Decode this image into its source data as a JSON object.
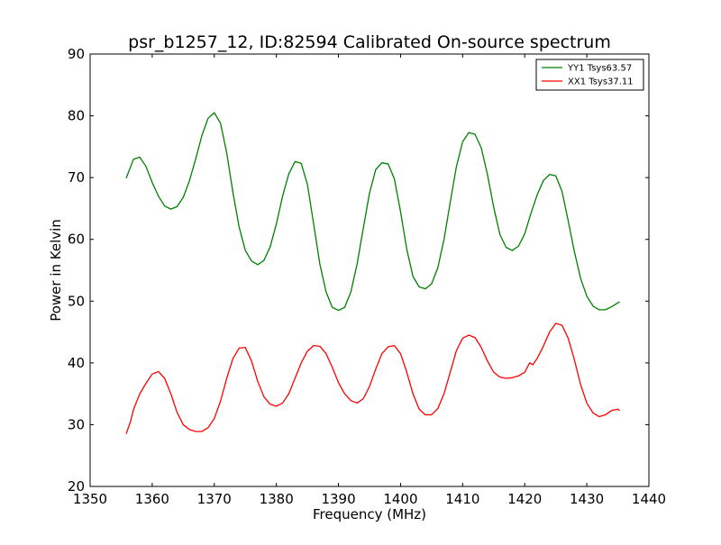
{
  "chart_data": {
    "type": "line",
    "title": "psr_b1257_12, ID:82594 Calibrated On-source spectrum",
    "xlabel": "Frequency (MHz)",
    "ylabel": "Power in Kelvin",
    "xlim": [
      1350,
      1440
    ],
    "ylim": [
      20,
      90
    ],
    "x_ticks": [
      "1350",
      "1360",
      "1370",
      "1380",
      "1390",
      "1400",
      "1410",
      "1420",
      "1430",
      "1440"
    ],
    "y_ticks": [
      "20",
      "30",
      "40",
      "50",
      "60",
      "70",
      "80",
      "90"
    ],
    "grid": false,
    "legend_position": "top-right",
    "series": [
      {
        "name": "YY1 Tsys63.57",
        "color": "#008000",
        "points": [
          [
            1355.8,
            69.9
          ],
          [
            1357.0,
            73.0
          ],
          [
            1358.0,
            73.3
          ],
          [
            1359.0,
            71.8
          ],
          [
            1360.0,
            69.2
          ],
          [
            1361.0,
            67.0
          ],
          [
            1362.0,
            65.4
          ],
          [
            1363.0,
            64.9
          ],
          [
            1364.0,
            65.3
          ],
          [
            1365.0,
            66.8
          ],
          [
            1366.0,
            69.5
          ],
          [
            1367.0,
            73.0
          ],
          [
            1368.0,
            76.8
          ],
          [
            1369.0,
            79.6
          ],
          [
            1370.0,
            80.5
          ],
          [
            1371.0,
            78.8
          ],
          [
            1372.0,
            74.0
          ],
          [
            1373.0,
            67.6
          ],
          [
            1374.0,
            62.0
          ],
          [
            1375.0,
            58.2
          ],
          [
            1376.0,
            56.5
          ],
          [
            1377.0,
            55.9
          ],
          [
            1378.0,
            56.6
          ],
          [
            1379.0,
            58.8
          ],
          [
            1380.0,
            62.5
          ],
          [
            1381.0,
            67.0
          ],
          [
            1382.0,
            70.6
          ],
          [
            1383.0,
            72.6
          ],
          [
            1384.0,
            72.3
          ],
          [
            1385.0,
            68.9
          ],
          [
            1386.0,
            62.5
          ],
          [
            1387.0,
            56.0
          ],
          [
            1388.0,
            51.5
          ],
          [
            1389.0,
            49.0
          ],
          [
            1390.0,
            48.5
          ],
          [
            1391.0,
            49.0
          ],
          [
            1392.0,
            51.5
          ],
          [
            1393.0,
            56.0
          ],
          [
            1394.0,
            61.8
          ],
          [
            1395.0,
            67.5
          ],
          [
            1396.0,
            71.3
          ],
          [
            1397.0,
            72.4
          ],
          [
            1398.0,
            72.2
          ],
          [
            1399.0,
            69.8
          ],
          [
            1400.0,
            64.5
          ],
          [
            1401.0,
            58.4
          ],
          [
            1402.0,
            54.0
          ],
          [
            1403.0,
            52.3
          ],
          [
            1404.0,
            52.0
          ],
          [
            1405.0,
            52.8
          ],
          [
            1406.0,
            55.4
          ],
          [
            1407.0,
            60.0
          ],
          [
            1408.0,
            66.0
          ],
          [
            1409.0,
            71.8
          ],
          [
            1410.0,
            75.8
          ],
          [
            1411.0,
            77.3
          ],
          [
            1412.0,
            77.0
          ],
          [
            1413.0,
            74.8
          ],
          [
            1414.0,
            70.5
          ],
          [
            1415.0,
            65.2
          ],
          [
            1416.0,
            60.8
          ],
          [
            1417.0,
            58.7
          ],
          [
            1418.0,
            58.2
          ],
          [
            1419.0,
            58.9
          ],
          [
            1420.0,
            60.9
          ],
          [
            1421.0,
            64.2
          ],
          [
            1422.0,
            67.2
          ],
          [
            1423.0,
            69.5
          ],
          [
            1424.0,
            70.5
          ],
          [
            1425.0,
            70.3
          ],
          [
            1426.0,
            67.8
          ],
          [
            1427.0,
            63.0
          ],
          [
            1428.0,
            58.0
          ],
          [
            1429.0,
            53.7
          ],
          [
            1430.0,
            50.8
          ],
          [
            1431.0,
            49.2
          ],
          [
            1432.0,
            48.6
          ],
          [
            1433.0,
            48.6
          ],
          [
            1434.0,
            49.1
          ],
          [
            1435.3,
            49.9
          ]
        ]
      },
      {
        "name": "XX1 Tsys37.11",
        "color": "#ff0000",
        "points": [
          [
            1355.8,
            28.5
          ],
          [
            1356.5,
            30.5
          ],
          [
            1357.0,
            32.5
          ],
          [
            1358.0,
            35.0
          ],
          [
            1359.0,
            36.7
          ],
          [
            1360.0,
            38.2
          ],
          [
            1361.0,
            38.6
          ],
          [
            1362.0,
            37.5
          ],
          [
            1363.0,
            35.0
          ],
          [
            1364.0,
            32.0
          ],
          [
            1365.0,
            30.0
          ],
          [
            1366.0,
            29.2
          ],
          [
            1367.0,
            28.9
          ],
          [
            1368.0,
            28.9
          ],
          [
            1369.0,
            29.5
          ],
          [
            1370.0,
            31.0
          ],
          [
            1371.0,
            33.8
          ],
          [
            1372.0,
            37.5
          ],
          [
            1373.0,
            40.7
          ],
          [
            1374.0,
            42.4
          ],
          [
            1375.0,
            42.5
          ],
          [
            1376.0,
            40.3
          ],
          [
            1377.0,
            37.0
          ],
          [
            1378.0,
            34.5
          ],
          [
            1379.0,
            33.3
          ],
          [
            1380.0,
            33.0
          ],
          [
            1381.0,
            33.5
          ],
          [
            1382.0,
            35.0
          ],
          [
            1383.0,
            37.5
          ],
          [
            1384.0,
            40.0
          ],
          [
            1385.0,
            41.9
          ],
          [
            1386.0,
            42.8
          ],
          [
            1387.0,
            42.7
          ],
          [
            1388.0,
            41.5
          ],
          [
            1389.0,
            39.3
          ],
          [
            1390.0,
            36.8
          ],
          [
            1391.0,
            35.0
          ],
          [
            1392.0,
            33.9
          ],
          [
            1393.0,
            33.5
          ],
          [
            1394.0,
            34.2
          ],
          [
            1395.0,
            36.2
          ],
          [
            1396.0,
            39.0
          ],
          [
            1397.0,
            41.5
          ],
          [
            1398.0,
            42.6
          ],
          [
            1399.0,
            42.8
          ],
          [
            1400.0,
            41.5
          ],
          [
            1401.0,
            38.5
          ],
          [
            1402.0,
            35.0
          ],
          [
            1403.0,
            32.5
          ],
          [
            1404.0,
            31.6
          ],
          [
            1405.0,
            31.6
          ],
          [
            1406.0,
            32.6
          ],
          [
            1407.0,
            35.0
          ],
          [
            1408.0,
            38.5
          ],
          [
            1409.0,
            42.0
          ],
          [
            1410.0,
            44.0
          ],
          [
            1411.0,
            44.5
          ],
          [
            1412.0,
            44.1
          ],
          [
            1413.0,
            42.5
          ],
          [
            1414.0,
            40.3
          ],
          [
            1415.0,
            38.5
          ],
          [
            1416.0,
            37.7
          ],
          [
            1417.0,
            37.5
          ],
          [
            1418.0,
            37.6
          ],
          [
            1419.0,
            37.9
          ],
          [
            1420.0,
            38.5
          ],
          [
            1420.8,
            40.0
          ],
          [
            1421.3,
            39.7
          ],
          [
            1422.0,
            40.7
          ],
          [
            1423.0,
            42.7
          ],
          [
            1424.0,
            45.0
          ],
          [
            1425.0,
            46.4
          ],
          [
            1426.0,
            46.1
          ],
          [
            1427.0,
            44.0
          ],
          [
            1428.0,
            40.5
          ],
          [
            1429.0,
            36.5
          ],
          [
            1430.0,
            33.5
          ],
          [
            1431.0,
            31.9
          ],
          [
            1432.0,
            31.3
          ],
          [
            1433.0,
            31.6
          ],
          [
            1434.0,
            32.3
          ],
          [
            1435.0,
            32.5
          ],
          [
            1435.3,
            32.3
          ]
        ]
      }
    ]
  }
}
